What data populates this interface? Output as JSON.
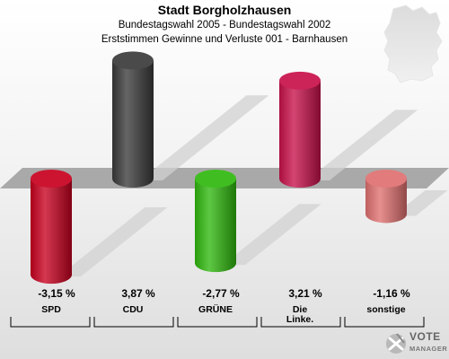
{
  "header": {
    "title": "Stadt Borgholzhausen",
    "subtitle1": "Bundestagswahl 2005 - Bundestagswahl 2002",
    "subtitle2": "Erststimmen Gewinne und Verluste 001 - Barnhausen"
  },
  "logo": {
    "line1": "VOTE",
    "line2": "MANAGER"
  },
  "chart_data": {
    "type": "bar",
    "title": "Stadt Borgholzhausen",
    "subtitle": "Bundestagswahl 2005 - Bundestagswahl 2002 / Erststimmen Gewinne und Verluste 001 - Barnhausen",
    "categories": [
      "SPD",
      "CDU",
      "GRÜNE",
      "Die Linke.",
      "sonstige"
    ],
    "category_labels": [
      [
        "SPD"
      ],
      [
        "CDU"
      ],
      [
        "GRÜNE"
      ],
      [
        "Die",
        "Linke."
      ],
      [
        "sonstige"
      ]
    ],
    "values": [
      -3.15,
      3.87,
      -2.77,
      3.21,
      -1.16
    ],
    "value_labels": [
      "-3,15 %",
      "3,87 %",
      "-2,77 %",
      "3,21 %",
      "-1,16 %"
    ],
    "colors": [
      "#c8001e",
      "#3a3a3a",
      "#2fb80e",
      "#c8104a",
      "#e07070"
    ],
    "unit": "%",
    "ylim": [
      -3.9,
      3.9
    ]
  }
}
